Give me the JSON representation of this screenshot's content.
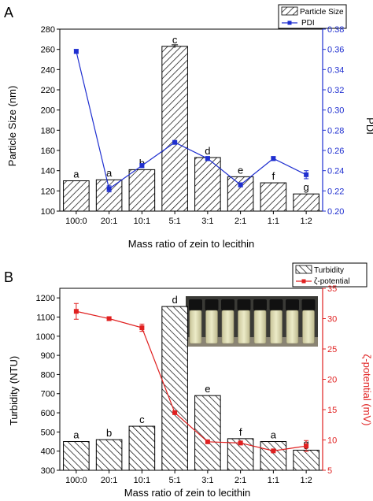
{
  "colors": {
    "bar_fill": "#ffffff",
    "bar_stroke": "#000000",
    "pdi_color": "#1f2fd0",
    "zeta_color": "#e02020",
    "axis": "#000000"
  },
  "chart_data": [
    {
      "panel_label": "A",
      "type": "bar",
      "categories": [
        "100:0",
        "20:1",
        "10:1",
        "5:1",
        "3:1",
        "2:1",
        "1:1",
        "1:2"
      ],
      "xlabel": "Mass ratio of zein to lecithin",
      "ylabel": "Particle Size (nm)",
      "ylim": [
        100,
        280
      ],
      "yticks": [
        100,
        120,
        140,
        160,
        180,
        200,
        220,
        240,
        260,
        280
      ],
      "y2label": "PDI",
      "y2lim": [
        0.2,
        0.38
      ],
      "y2ticks": [
        "0.20",
        "0.22",
        "0.24",
        "0.26",
        "0.28",
        "0.30",
        "0.32",
        "0.34",
        "0.36",
        "0.38"
      ],
      "grid": false,
      "legend_position": "top-right",
      "series": [
        {
          "name": "Particle Size",
          "type": "bar",
          "hatch": "diagonal",
          "values": [
            130,
            131,
            141,
            263,
            153,
            134,
            128,
            117
          ],
          "errors": [
            0,
            0,
            0,
            1.5,
            0,
            0,
            0,
            0
          ],
          "letters": [
            "a",
            "a",
            "b",
            "c",
            "d",
            "e",
            "f",
            "g"
          ]
        },
        {
          "name": "PDI",
          "type": "line",
          "axis": "right",
          "values": [
            0.358,
            0.222,
            0.245,
            0.268,
            0.252,
            0.226,
            0.252,
            0.236
          ],
          "errors": [
            0.002,
            0.003,
            0.002,
            0.001,
            0.002,
            0.002,
            0.002,
            0.004
          ]
        }
      ]
    },
    {
      "panel_label": "B",
      "type": "bar",
      "categories": [
        "100:0",
        "20:1",
        "10:1",
        "5:1",
        "3:1",
        "2:1",
        "1:1",
        "1:2"
      ],
      "xlabel": "Mass ratio of zein to lecithin",
      "ylabel": "Turbidity (NTU)",
      "ylim": [
        300,
        1250
      ],
      "yticks": [
        300,
        400,
        500,
        600,
        700,
        800,
        900,
        1000,
        1100,
        1200
      ],
      "y2label": "ζ-potential (mV)",
      "y2lim": [
        5,
        35
      ],
      "y2ticks": [
        "5",
        "10",
        "15",
        "20",
        "25",
        "30",
        "35"
      ],
      "grid": false,
      "legend_position": "top-right",
      "inset": "photo of eight vials",
      "series": [
        {
          "name": "Turbidity",
          "type": "bar",
          "hatch": "diagonal",
          "values": [
            450,
            460,
            530,
            1155,
            690,
            465,
            450,
            405
          ],
          "letters": [
            "a",
            "b",
            "c",
            "d",
            "e",
            "f",
            "a",
            "g"
          ]
        },
        {
          "name": "ζ-potential",
          "type": "line",
          "axis": "right",
          "values": [
            31.2,
            30.0,
            28.5,
            14.5,
            9.7,
            9.5,
            8.2,
            9.0
          ],
          "errors": [
            1.3,
            0.3,
            0.6,
            0,
            0,
            0.3,
            0,
            0.9
          ]
        }
      ]
    }
  ]
}
